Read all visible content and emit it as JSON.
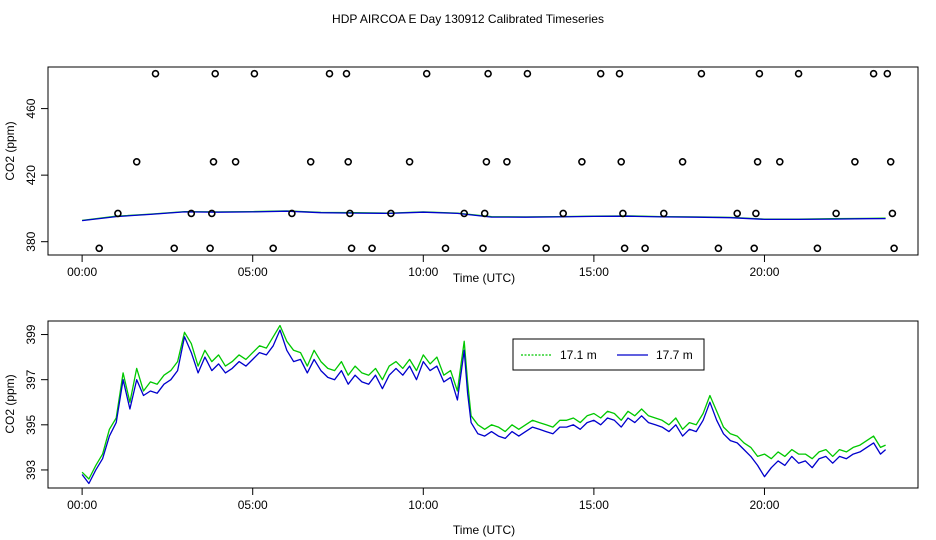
{
  "title": "HDP AIRCOA E  Day 130912  Calibrated Timeseries",
  "colors": {
    "green": "#00c800",
    "blue": "#0000cc",
    "frame": "#000000",
    "background": "#ffffff"
  },
  "chart_data": [
    {
      "type": "scatter",
      "xlabel": "Time (UTC)",
      "ylabel": "CO2 (ppm)",
      "x_unit": "hours UTC",
      "xlim": [
        -1.0,
        24.5
      ],
      "ylim": [
        372,
        485
      ],
      "x_ticks": [
        {
          "value": 0,
          "label": "00:00"
        },
        {
          "value": 5,
          "label": "05:00"
        },
        {
          "value": 10,
          "label": "10:00"
        },
        {
          "value": 15,
          "label": "15:00"
        },
        {
          "value": 20,
          "label": "20:00"
        }
      ],
      "y_ticks": [
        {
          "value": 380,
          "label": "380"
        },
        {
          "value": 420,
          "label": "420"
        },
        {
          "value": 460,
          "label": "460"
        }
      ],
      "points": [
        {
          "x": 0.5,
          "y": 376
        },
        {
          "x": 1.05,
          "y": 397
        },
        {
          "x": 1.6,
          "y": 428
        },
        {
          "x": 2.15,
          "y": 481
        },
        {
          "x": 2.7,
          "y": 376
        },
        {
          "x": 3.2,
          "y": 397
        },
        {
          "x": 3.75,
          "y": 376
        },
        {
          "x": 3.8,
          "y": 397
        },
        {
          "x": 3.85,
          "y": 428
        },
        {
          "x": 3.9,
          "y": 481
        },
        {
          "x": 4.5,
          "y": 428
        },
        {
          "x": 5.05,
          "y": 481
        },
        {
          "x": 5.6,
          "y": 376
        },
        {
          "x": 6.15,
          "y": 397
        },
        {
          "x": 6.7,
          "y": 428
        },
        {
          "x": 7.25,
          "y": 481
        },
        {
          "x": 7.75,
          "y": 481
        },
        {
          "x": 7.8,
          "y": 428
        },
        {
          "x": 7.85,
          "y": 397
        },
        {
          "x": 7.9,
          "y": 376
        },
        {
          "x": 8.5,
          "y": 376
        },
        {
          "x": 9.05,
          "y": 397
        },
        {
          "x": 9.6,
          "y": 428
        },
        {
          "x": 10.1,
          "y": 481
        },
        {
          "x": 10.65,
          "y": 376
        },
        {
          "x": 11.2,
          "y": 397
        },
        {
          "x": 11.75,
          "y": 376
        },
        {
          "x": 11.8,
          "y": 397
        },
        {
          "x": 11.85,
          "y": 428
        },
        {
          "x": 11.9,
          "y": 481
        },
        {
          "x": 12.45,
          "y": 428
        },
        {
          "x": 13.05,
          "y": 481
        },
        {
          "x": 13.6,
          "y": 376
        },
        {
          "x": 14.1,
          "y": 397
        },
        {
          "x": 14.65,
          "y": 428
        },
        {
          "x": 15.2,
          "y": 481
        },
        {
          "x": 15.75,
          "y": 481
        },
        {
          "x": 15.8,
          "y": 428
        },
        {
          "x": 15.85,
          "y": 397
        },
        {
          "x": 15.9,
          "y": 376
        },
        {
          "x": 16.5,
          "y": 376
        },
        {
          "x": 17.05,
          "y": 397
        },
        {
          "x": 17.6,
          "y": 428
        },
        {
          "x": 18.15,
          "y": 481
        },
        {
          "x": 18.65,
          "y": 376
        },
        {
          "x": 19.2,
          "y": 397
        },
        {
          "x": 19.7,
          "y": 376
        },
        {
          "x": 19.75,
          "y": 397
        },
        {
          "x": 19.8,
          "y": 428
        },
        {
          "x": 19.85,
          "y": 481
        },
        {
          "x": 20.45,
          "y": 428
        },
        {
          "x": 21.0,
          "y": 481
        },
        {
          "x": 21.55,
          "y": 376
        },
        {
          "x": 22.1,
          "y": 397
        },
        {
          "x": 22.65,
          "y": 428
        },
        {
          "x": 23.2,
          "y": 481
        },
        {
          "x": 23.6,
          "y": 481
        },
        {
          "x": 23.7,
          "y": 428
        },
        {
          "x": 23.75,
          "y": 397
        },
        {
          "x": 23.8,
          "y": 376
        }
      ],
      "series": [
        {
          "name": "17.1 m",
          "color": "#00c800",
          "x": [
            0.0,
            1.0,
            2.0,
            3.0,
            4.0,
            5.0,
            6.0,
            7.0,
            8.0,
            9.0,
            10.0,
            11.0,
            12.0,
            13.0,
            14.0,
            15.0,
            16.0,
            17.0,
            18.0,
            19.0,
            20.0,
            21.0,
            22.0,
            23.0,
            23.55
          ],
          "y": [
            392.8,
            395.3,
            396.6,
            398.1,
            397.9,
            398.1,
            398.5,
            397.6,
            397.4,
            397.2,
            397.9,
            397.2,
            395.0,
            394.9,
            395.1,
            395.4,
            395.5,
            395.1,
            394.9,
            394.6,
            393.6,
            393.6,
            393.8,
            394.0,
            394.1
          ]
        },
        {
          "name": "17.7 m",
          "color": "#0000cc",
          "x": [
            0.0,
            1.0,
            2.0,
            3.0,
            4.0,
            5.0,
            6.0,
            7.0,
            8.0,
            9.0,
            10.0,
            11.0,
            12.0,
            13.0,
            14.0,
            15.0,
            16.0,
            17.0,
            18.0,
            19.0,
            20.0,
            21.0,
            22.0,
            23.0,
            23.55
          ],
          "y": [
            392.7,
            395.1,
            396.4,
            397.9,
            397.7,
            397.9,
            398.3,
            397.4,
            397.2,
            397.0,
            397.7,
            397.0,
            394.8,
            394.7,
            394.9,
            395.2,
            395.3,
            394.9,
            394.7,
            394.4,
            393.4,
            393.4,
            393.6,
            393.8,
            393.9
          ]
        }
      ]
    },
    {
      "type": "line",
      "xlabel": "Time (UTC)",
      "ylabel": "CO2 (ppm)",
      "x_unit": "hours UTC",
      "xlim": [
        -1.0,
        24.5
      ],
      "ylim": [
        392.2,
        399.6
      ],
      "x_ticks": [
        {
          "value": 0,
          "label": "00:00"
        },
        {
          "value": 5,
          "label": "05:00"
        },
        {
          "value": 10,
          "label": "10:00"
        },
        {
          "value": 15,
          "label": "15:00"
        },
        {
          "value": 20,
          "label": "20:00"
        }
      ],
      "y_ticks": [
        {
          "value": 393,
          "label": "393"
        },
        {
          "value": 395,
          "label": "395"
        },
        {
          "value": 397,
          "label": "397"
        },
        {
          "value": 399,
          "label": "399"
        }
      ],
      "legend": "top-center",
      "series": [
        {
          "name": "17.1 m",
          "color": "#00c800",
          "x": [
            0.0,
            0.2,
            0.4,
            0.6,
            0.8,
            1.0,
            1.2,
            1.4,
            1.6,
            1.8,
            2.0,
            2.2,
            2.4,
            2.6,
            2.8,
            3.0,
            3.2,
            3.4,
            3.6,
            3.8,
            4.0,
            4.2,
            4.4,
            4.6,
            4.8,
            5.0,
            5.2,
            5.4,
            5.6,
            5.8,
            6.0,
            6.2,
            6.4,
            6.6,
            6.8,
            7.0,
            7.2,
            7.4,
            7.6,
            7.8,
            8.0,
            8.2,
            8.4,
            8.6,
            8.8,
            9.0,
            9.2,
            9.4,
            9.6,
            9.8,
            10.0,
            10.2,
            10.4,
            10.6,
            10.8,
            11.0,
            11.1,
            11.2,
            11.3,
            11.4,
            11.6,
            11.8,
            12.0,
            12.2,
            12.4,
            12.6,
            12.8,
            13.0,
            13.2,
            13.4,
            13.6,
            13.8,
            14.0,
            14.2,
            14.4,
            14.6,
            14.8,
            15.0,
            15.2,
            15.4,
            15.6,
            15.8,
            16.0,
            16.2,
            16.4,
            16.6,
            16.8,
            17.0,
            17.2,
            17.4,
            17.6,
            17.8,
            18.0,
            18.2,
            18.4,
            18.6,
            18.8,
            19.0,
            19.2,
            19.4,
            19.6,
            19.8,
            20.0,
            20.2,
            20.4,
            20.6,
            20.8,
            21.0,
            21.2,
            21.4,
            21.6,
            21.8,
            22.0,
            22.2,
            22.4,
            22.6,
            22.8,
            23.0,
            23.2,
            23.4,
            23.55
          ],
          "y": [
            392.9,
            392.6,
            393.2,
            393.7,
            394.8,
            395.3,
            397.3,
            396.0,
            397.5,
            396.5,
            396.9,
            396.8,
            397.2,
            397.4,
            397.8,
            399.1,
            398.6,
            397.6,
            398.3,
            397.8,
            398.1,
            397.6,
            397.8,
            398.1,
            397.9,
            398.2,
            398.5,
            398.4,
            398.9,
            399.4,
            398.7,
            398.3,
            398.2,
            397.6,
            398.3,
            397.8,
            397.5,
            397.4,
            397.8,
            397.2,
            397.6,
            397.3,
            397.2,
            397.5,
            397.0,
            397.6,
            397.8,
            397.5,
            397.9,
            397.4,
            398.1,
            397.7,
            398.0,
            397.2,
            397.4,
            396.5,
            397.6,
            398.7,
            396.9,
            395.4,
            395.0,
            394.8,
            395.0,
            394.9,
            394.7,
            395.0,
            394.8,
            395.0,
            395.2,
            395.1,
            395.0,
            394.9,
            395.2,
            395.2,
            395.3,
            395.1,
            395.4,
            395.5,
            395.3,
            395.6,
            395.5,
            395.2,
            395.6,
            395.4,
            395.7,
            395.4,
            395.3,
            395.2,
            395.0,
            395.3,
            394.8,
            395.1,
            395.0,
            395.5,
            396.3,
            395.6,
            394.9,
            394.6,
            394.5,
            394.2,
            394.0,
            393.6,
            393.7,
            393.5,
            393.8,
            393.6,
            393.9,
            393.7,
            393.7,
            393.5,
            393.8,
            393.9,
            393.6,
            393.9,
            393.8,
            394.0,
            394.1,
            394.3,
            394.5,
            394.0,
            394.1
          ]
        },
        {
          "name": "17.7 m",
          "color": "#0000cc",
          "x": [
            0.0,
            0.2,
            0.4,
            0.6,
            0.8,
            1.0,
            1.2,
            1.4,
            1.6,
            1.8,
            2.0,
            2.2,
            2.4,
            2.6,
            2.8,
            3.0,
            3.2,
            3.4,
            3.6,
            3.8,
            4.0,
            4.2,
            4.4,
            4.6,
            4.8,
            5.0,
            5.2,
            5.4,
            5.6,
            5.8,
            6.0,
            6.2,
            6.4,
            6.6,
            6.8,
            7.0,
            7.2,
            7.4,
            7.6,
            7.8,
            8.0,
            8.2,
            8.4,
            8.6,
            8.8,
            9.0,
            9.2,
            9.4,
            9.6,
            9.8,
            10.0,
            10.2,
            10.4,
            10.6,
            10.8,
            11.0,
            11.1,
            11.2,
            11.3,
            11.4,
            11.6,
            11.8,
            12.0,
            12.2,
            12.4,
            12.6,
            12.8,
            13.0,
            13.2,
            13.4,
            13.6,
            13.8,
            14.0,
            14.2,
            14.4,
            14.6,
            14.8,
            15.0,
            15.2,
            15.4,
            15.6,
            15.8,
            16.0,
            16.2,
            16.4,
            16.6,
            16.8,
            17.0,
            17.2,
            17.4,
            17.6,
            17.8,
            18.0,
            18.2,
            18.4,
            18.6,
            18.8,
            19.0,
            19.2,
            19.4,
            19.6,
            19.8,
            20.0,
            20.2,
            20.4,
            20.6,
            20.8,
            21.0,
            21.2,
            21.4,
            21.6,
            21.8,
            22.0,
            22.2,
            22.4,
            22.6,
            22.8,
            23.0,
            23.2,
            23.4,
            23.55
          ],
          "y": [
            392.8,
            392.4,
            393.0,
            393.5,
            394.5,
            395.1,
            397.0,
            395.7,
            397.0,
            396.3,
            396.5,
            396.4,
            396.8,
            397.0,
            397.4,
            398.9,
            398.2,
            397.3,
            398.0,
            397.4,
            397.7,
            397.3,
            397.5,
            397.8,
            397.6,
            397.9,
            398.2,
            398.1,
            398.5,
            399.2,
            398.3,
            397.8,
            397.9,
            397.3,
            397.9,
            397.4,
            397.1,
            397.0,
            397.4,
            396.8,
            397.2,
            396.9,
            396.8,
            397.2,
            396.6,
            397.2,
            397.5,
            397.2,
            397.6,
            397.0,
            397.8,
            397.4,
            397.6,
            396.9,
            397.1,
            396.1,
            397.2,
            398.3,
            396.4,
            395.1,
            394.6,
            394.5,
            394.7,
            394.5,
            394.4,
            394.7,
            394.5,
            394.7,
            394.9,
            394.8,
            394.7,
            394.6,
            394.9,
            394.9,
            395.0,
            394.8,
            395.1,
            395.2,
            395.0,
            395.3,
            395.2,
            394.9,
            395.3,
            395.1,
            395.4,
            395.1,
            395.0,
            394.9,
            394.7,
            395.0,
            394.5,
            394.8,
            394.7,
            395.2,
            396.0,
            395.2,
            394.6,
            394.3,
            394.2,
            393.9,
            393.6,
            393.2,
            392.7,
            393.1,
            393.4,
            393.2,
            393.6,
            393.3,
            393.4,
            393.1,
            393.5,
            393.6,
            393.3,
            393.6,
            393.5,
            393.7,
            393.8,
            394.0,
            394.2,
            393.7,
            393.9
          ]
        }
      ]
    }
  ]
}
